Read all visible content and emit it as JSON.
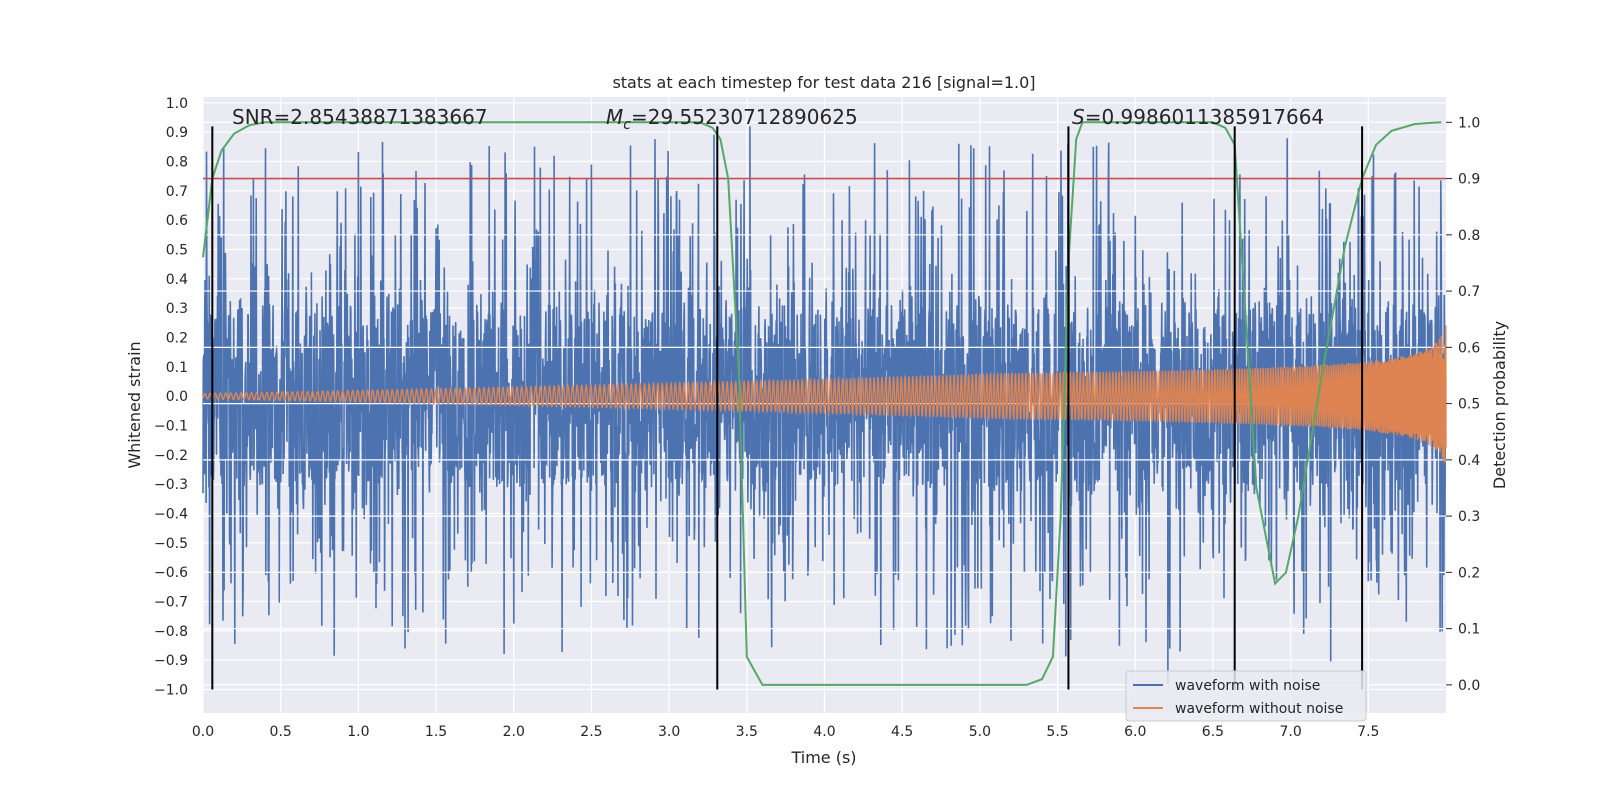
{
  "chart_data": {
    "type": "line",
    "title": "stats at each timestep for test data 216 [signal=1.0]",
    "xlabel": "Time (s)",
    "ylabel_left": "Whitened strain",
    "ylabel_right": "Detection probability",
    "xlim": [
      0.0,
      8.0
    ],
    "ylim_left": [
      -1.08,
      1.02
    ],
    "ylim_right": [
      -0.05,
      1.045
    ],
    "x_ticks": [
      0.0,
      0.5,
      1.0,
      1.5,
      2.0,
      2.5,
      3.0,
      3.5,
      4.0,
      4.5,
      5.0,
      5.5,
      6.0,
      6.5,
      7.0,
      7.5
    ],
    "x_tick_labels": [
      "0.0",
      "0.5",
      "1.0",
      "1.5",
      "2.0",
      "2.5",
      "3.0",
      "3.5",
      "4.0",
      "4.5",
      "5.0",
      "5.5",
      "6.0",
      "6.5",
      "7.0",
      "7.5"
    ],
    "y_left_ticks": [
      1.0,
      0.9,
      0.8,
      0.7,
      0.6,
      0.5,
      0.4,
      0.3,
      0.2,
      0.1,
      0.0,
      -0.1,
      -0.2,
      -0.3,
      -0.4,
      -0.5,
      -0.6,
      -0.7,
      -0.8,
      -0.9,
      -1.0
    ],
    "y_left_tick_labels": [
      "1.0",
      "0.9",
      "0.8",
      "0.7",
      "0.6",
      "0.5",
      "0.4",
      "0.3",
      "0.2",
      "0.1",
      "0.0",
      "−0.1",
      "−0.2",
      "−0.3",
      "−0.4",
      "−0.5",
      "−0.6",
      "−0.7",
      "−0.8",
      "−0.9",
      "−1.0"
    ],
    "y_right_ticks": [
      1.0,
      0.9,
      0.8,
      0.7,
      0.6,
      0.5,
      0.4,
      0.3,
      0.2,
      0.1,
      0.0
    ],
    "y_right_tick_labels": [
      "1.0",
      "0.9",
      "0.8",
      "0.7",
      "0.6",
      "0.5",
      "0.4",
      "0.3",
      "0.2",
      "0.1",
      "0.0"
    ],
    "annotations": {
      "snr": "SNR=2.85438871383667",
      "mc_symbol": "M",
      "mc_sub": "c",
      "mc_value": "=29.55230712890625",
      "s_symbol": "S",
      "s_value": "=0.9986011385917664"
    },
    "legend": {
      "position": "lower-right",
      "entries": [
        "waveform with noise",
        "waveform without noise"
      ]
    },
    "colors": {
      "noise": "#4c72b0",
      "signal": "#dd8452",
      "probability": "#55a868",
      "threshold": "#c44e52",
      "vlines": "#000000",
      "axes_bg": "#eaeaf2",
      "grid": "#ffffff"
    },
    "threshold": 0.9,
    "vlines_x": [
      0.06,
      3.31,
      5.57,
      6.64,
      7.46
    ],
    "vline_range": [
      -1.0,
      0.92
    ],
    "noise_series": {
      "name": "waveform with noise",
      "duration": 8.0,
      "core_amplitude": 0.3,
      "typical_peak": 0.5,
      "max_peaks": [
        [
          1.16,
          0.76
        ],
        [
          2.26,
          0.82
        ],
        [
          2.5,
          0.79
        ],
        [
          3.52,
          0.92
        ],
        [
          5.73,
          0.85
        ],
        [
          3.46,
          -0.74
        ],
        [
          1.3,
          -0.86
        ],
        [
          6.21,
          -0.98
        ],
        [
          5.08,
          -0.75
        ],
        [
          0.58,
          -0.63
        ]
      ]
    },
    "signal_series": {
      "name": "waveform without noise",
      "duration": 8.0,
      "peak_amplitude": 0.33,
      "merger_time": 7.97
    },
    "probability_series": {
      "name": "detection probability",
      "x": [
        0.0,
        0.06,
        0.12,
        0.2,
        0.3,
        0.4,
        0.6,
        1.0,
        2.0,
        3.0,
        3.2,
        3.28,
        3.33,
        3.38,
        3.45,
        3.5,
        3.6,
        4.0,
        5.0,
        5.3,
        5.4,
        5.47,
        5.52,
        5.57,
        5.62,
        5.66,
        5.8,
        6.0,
        6.5,
        6.58,
        6.64,
        6.7,
        6.78,
        6.9,
        6.97,
        7.05,
        7.2,
        7.35,
        7.46,
        7.55,
        7.65,
        7.8,
        7.9,
        7.97
      ],
      "y": [
        0.76,
        0.9,
        0.95,
        0.98,
        0.995,
        1.0,
        1.0,
        1.0,
        1.0,
        1.0,
        1.0,
        0.99,
        0.97,
        0.9,
        0.55,
        0.05,
        0.0,
        0.0,
        0.0,
        0.0,
        0.01,
        0.05,
        0.3,
        0.75,
        0.97,
        1.0,
        1.0,
        1.0,
        1.0,
        0.99,
        0.96,
        0.7,
        0.35,
        0.18,
        0.2,
        0.3,
        0.55,
        0.78,
        0.9,
        0.96,
        0.985,
        0.997,
        0.999,
        1.0
      ]
    }
  }
}
